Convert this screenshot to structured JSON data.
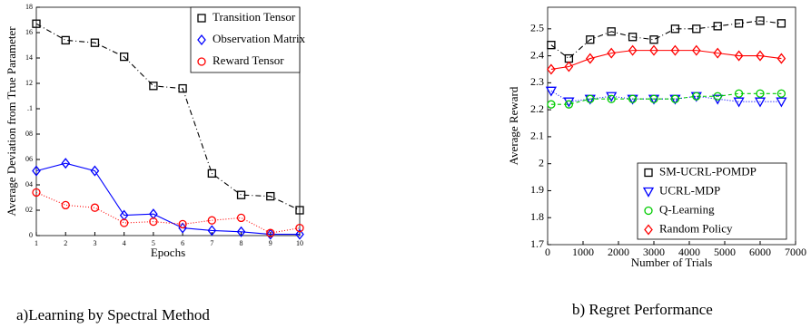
{
  "chart_data": [
    {
      "type": "line",
      "ylabel": "Average Deviation from True Parameter",
      "xlabel": "Epochs",
      "x": [
        1,
        2,
        3,
        4,
        5,
        6,
        7,
        8,
        9,
        10
      ],
      "xlim": [
        1,
        10
      ],
      "xticks": [
        1,
        2,
        3,
        4,
        5,
        6,
        7,
        8,
        9,
        10
      ],
      "ylim": [
        0,
        0.18
      ],
      "yticks": [
        0,
        {
          "value": 0.02,
          "label": "02"
        },
        {
          "value": 0.04,
          "label": "04"
        },
        {
          "value": 0.06,
          "label": "06"
        },
        {
          "value": 0.08,
          "label": "08"
        },
        {
          "value": 0.1,
          "label": ".1"
        },
        {
          "value": 0.12,
          "label": "12"
        },
        {
          "value": 0.14,
          "label": "14"
        },
        {
          "value": 0.16,
          "label": "16"
        },
        {
          "value": 0.18,
          "label": "18"
        }
      ],
      "legend": "upper right",
      "series": [
        {
          "name": "Transition Tensor",
          "color": "#000000",
          "marker": "square",
          "dash": "6 3 1 3",
          "values": [
            0.167,
            0.154,
            0.152,
            0.141,
            0.118,
            0.116,
            0.049,
            0.032,
            0.031,
            0.02
          ]
        },
        {
          "name": "Observation Matrix",
          "color": "#0000ff",
          "marker": "diamond",
          "dash": "none",
          "values": [
            0.051,
            0.057,
            0.051,
            0.016,
            0.017,
            0.006,
            0.004,
            0.003,
            0.001,
            0.001
          ]
        },
        {
          "name": "Reward Tensor",
          "color": "#ff0000",
          "marker": "circle",
          "dash": "1 2",
          "values": [
            0.034,
            0.024,
            0.022,
            0.01,
            0.011,
            0.009,
            0.012,
            0.014,
            0.002,
            0.006
          ]
        }
      ]
    },
    {
      "type": "line",
      "ylabel": "Average Reward",
      "xlabel": "Number of Trials",
      "x": [
        100,
        600,
        1200,
        1800,
        2400,
        3000,
        3600,
        4200,
        4800,
        5400,
        6000,
        6600
      ],
      "xlim": [
        0,
        7000
      ],
      "xticks": [
        0,
        1000,
        2000,
        3000,
        4000,
        5000,
        6000,
        7000
      ],
      "ylim": [
        1.7,
        2.58
      ],
      "yticks": [
        1.7,
        1.8,
        1.9,
        2,
        2.1,
        2.2,
        2.3,
        2.4,
        2.5
      ],
      "legend": "lower right",
      "series": [
        {
          "name": "SM-UCRL-POMDP",
          "color": "#000000",
          "marker": "square",
          "dash": "6 3 1 3",
          "values": [
            2.44,
            2.39,
            2.46,
            2.49,
            2.47,
            2.46,
            2.5,
            2.5,
            2.51,
            2.52,
            2.53,
            2.52
          ]
        },
        {
          "name": "UCRL-MDP",
          "color": "#0000ff",
          "marker": "triangle",
          "dash": "1 2",
          "values": [
            2.27,
            2.23,
            2.24,
            2.25,
            2.24,
            2.24,
            2.24,
            2.25,
            2.24,
            2.23,
            2.23,
            2.23
          ]
        },
        {
          "name": "Q-Learning",
          "color": "#00cc00",
          "marker": "circle",
          "dash": "4 3",
          "values": [
            2.22,
            2.22,
            2.24,
            2.24,
            2.24,
            2.24,
            2.24,
            2.25,
            2.25,
            2.26,
            2.26,
            2.26
          ]
        },
        {
          "name": "Random Policy",
          "color": "#ff0000",
          "marker": "diamond",
          "dash": "none",
          "values": [
            2.35,
            2.36,
            2.39,
            2.41,
            2.42,
            2.42,
            2.42,
            2.42,
            2.41,
            2.4,
            2.4,
            2.39
          ]
        }
      ]
    }
  ],
  "captions": [
    "a)Learning by Spectral Method",
    "b) Regret Performance"
  ]
}
